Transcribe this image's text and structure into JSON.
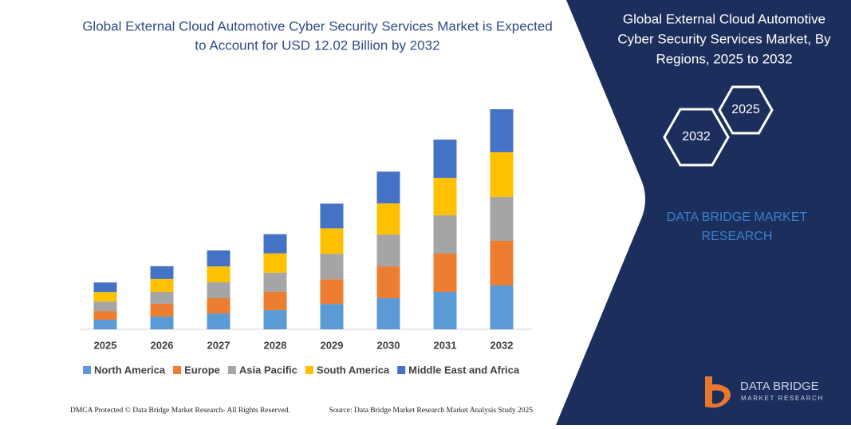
{
  "chart_data": {
    "type": "stacked_bar",
    "title": "Global External Cloud Automotive Cyber Security Services Market is Expected to Account for USD 12.02 Billion by 2032",
    "categories": [
      "2025",
      "2026",
      "2027",
      "2028",
      "2029",
      "2030",
      "2031",
      "2032"
    ],
    "series": [
      {
        "name": "North America",
        "color": "#5b9bd5",
        "values": [
          0.52,
          0.7,
          0.87,
          1.05,
          1.39,
          1.7,
          2.05,
          2.4
        ]
      },
      {
        "name": "Europe",
        "color": "#ed7d31",
        "values": [
          0.48,
          0.7,
          0.83,
          1.0,
          1.35,
          1.74,
          2.09,
          2.44
        ]
      },
      {
        "name": "Asia Pacific",
        "color": "#a5a5a5",
        "values": [
          0.52,
          0.65,
          0.87,
          1.05,
          1.39,
          1.74,
          2.09,
          2.4
        ]
      },
      {
        "name": "South America",
        "color": "#ffc000",
        "values": [
          0.52,
          0.7,
          0.87,
          1.05,
          1.39,
          1.7,
          2.05,
          2.44
        ]
      },
      {
        "name": "Middle East and Africa",
        "color": "#4472c4",
        "values": [
          0.52,
          0.7,
          0.87,
          1.05,
          1.35,
          1.74,
          2.09,
          2.35
        ]
      }
    ],
    "legend": "bottom"
  },
  "panel": {
    "title": "Global External Cloud Automotive Cyber Security Services Market, By Regions, 2025 to 2032",
    "hex_start": "2025",
    "hex_end": "2032",
    "brand": "DATA BRIDGE MARKET RESEARCH",
    "logo_name": "DATA BRIDGE",
    "logo_sub": "MARKET RESEARCH"
  },
  "footer": {
    "left": "DMCA Protected © Data Bridge Market Research- All Rights Reserved.",
    "right": "Source: Data Bridge Market Research Market Analysis Study 2025"
  }
}
